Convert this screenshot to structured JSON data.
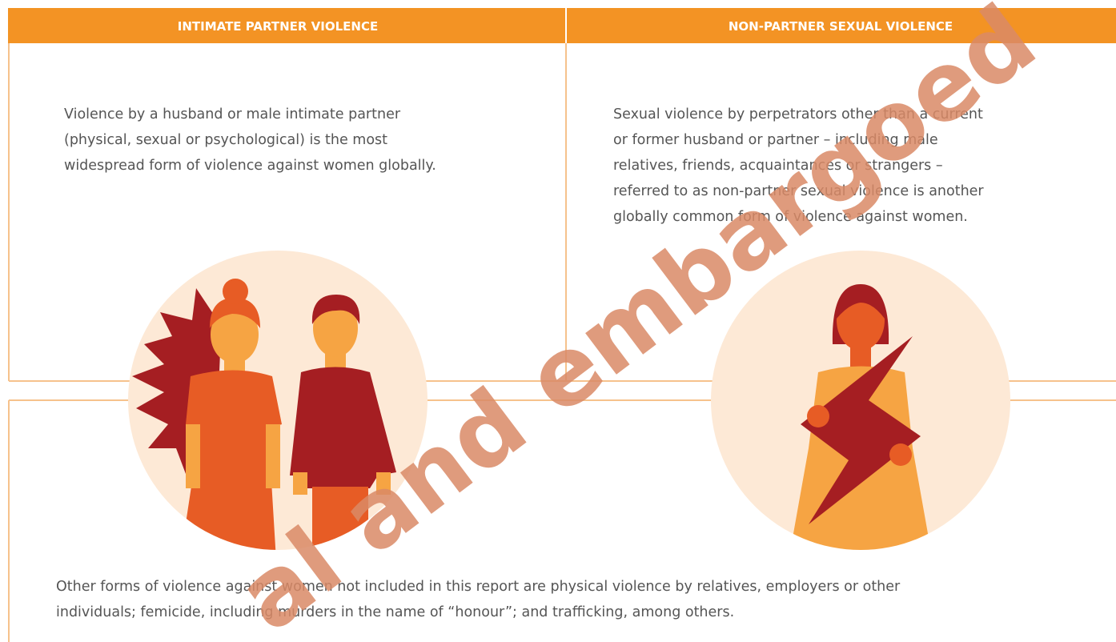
{
  "panels": [
    {
      "title": "INTIMATE PARTNER VIOLENCE",
      "lines": [
        "Violence by a husband or male intimate partner",
        "(physical, sexual or psychological) is the most",
        "widespread form of violence against women globally."
      ]
    },
    {
      "title": "NON-PARTNER SEXUAL VIOLENCE",
      "lines": [
        "Sexual violence by perpetrators other than a current",
        "or former husband or partner – including male",
        "relatives, friends, acquaintances or strangers –",
        "referred to as non-partner sexual violence is another",
        "globally common form of violence against women."
      ]
    }
  ],
  "footer": {
    "lines": [
      "Other forms of violence against women not included in this report are physical violence by relatives, employers or other",
      "individuals; femicide, including murders in the name of “honour”; and trafficking, among others."
    ]
  },
  "watermark": "al and embargoed"
}
